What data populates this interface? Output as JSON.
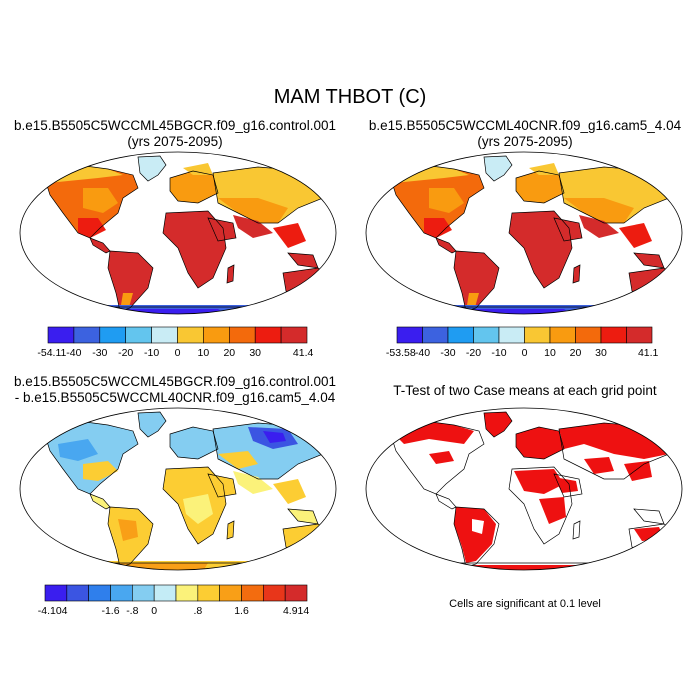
{
  "figure": {
    "title": "MAM THBOT (C)"
  },
  "panels": {
    "top_left": {
      "title_line1": "b.e15.B5505C5WCCML45BGCR.f09_g16.control.001",
      "title_line2": "(yrs 2075-2095)",
      "colorbar_labels": [
        "-54.11",
        "-40",
        "-30",
        "-20",
        "-10",
        "0",
        "10",
        "20",
        "30",
        "41.4"
      ]
    },
    "top_right": {
      "title_line1": "b.e15.B5505C5WCCML40CNR.f09_g16.cam5_4.04",
      "title_line2": "(yrs 2075-2095)",
      "colorbar_labels": [
        "-53.58",
        "-40",
        "-30",
        "-20",
        "-10",
        "0",
        "10",
        "20",
        "30",
        "41.1"
      ]
    },
    "bottom_left": {
      "title_line1": "b.e15.B5505C5WCCML45BGCR.f09_g16.control.001",
      "title_line2": "- b.e15.B5505C5WCCML40CNR.f09_g16.cam5_4.04",
      "colorbar_labels": [
        "-4.104",
        "-1.6",
        "-.8",
        "0",
        ".8",
        "1.6",
        "4.914"
      ]
    },
    "bottom_right": {
      "title": "T-Test of two Case means at each grid point",
      "note": "Cells are significant at 0.1 level"
    }
  },
  "colors": {
    "abs_scale": [
      "#3a1eef",
      "#3c62e0",
      "#1f9cf2",
      "#63c5ee",
      "#c9ecf5",
      "#f9c733",
      "#f99b10",
      "#f36a0c",
      "#ed1c10",
      "#d42b2b"
    ],
    "diff_scale": [
      "#3a1eef",
      "#3b55e2",
      "#2f7fec",
      "#49a7f0",
      "#84cdf1",
      "#c4ecf6",
      "#fbf27a",
      "#fccd33",
      "#f99f17",
      "#f36c0f",
      "#e8361a",
      "#d42b2b"
    ],
    "significant": "#ee1111"
  }
}
